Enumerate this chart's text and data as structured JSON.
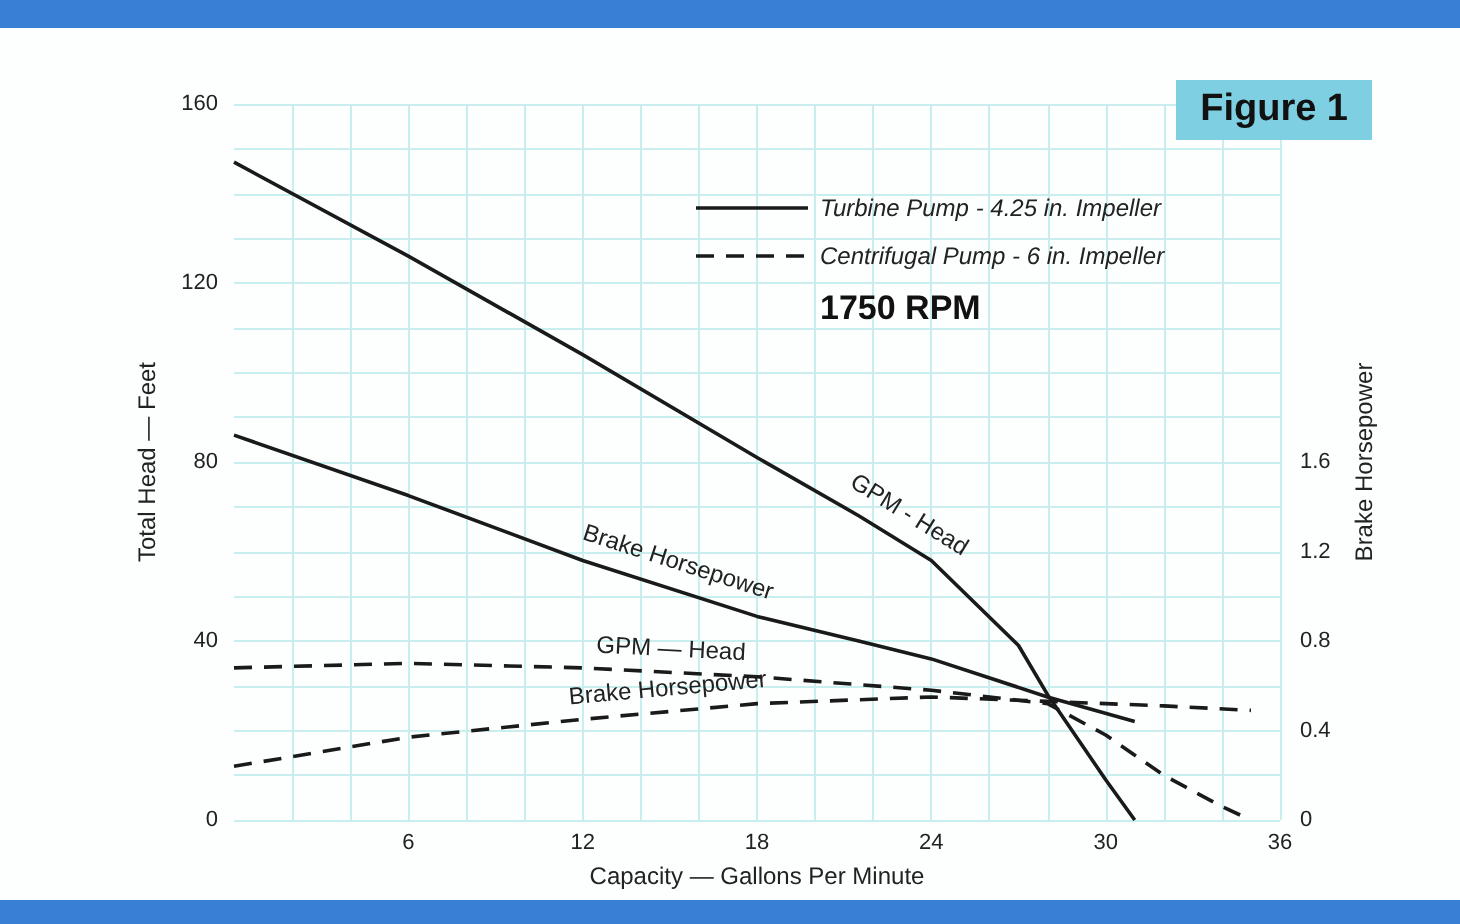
{
  "chart_data": {
    "type": "line",
    "title": "Figure 1",
    "xlabel": "Capacity — Gallons Per Minute",
    "ylabel": "Total Head — Feet",
    "y2label": "Brake Horsepower",
    "annotations": [
      "Turbine Pump - 4.25 in. Impeller",
      "Centrifugal Pump - 6 in. Impeller",
      "1750 RPM"
    ],
    "xlim": [
      0,
      36
    ],
    "xticks": [
      6,
      12,
      18,
      24,
      30,
      36
    ],
    "ylim": [
      0,
      160
    ],
    "yticks": [
      0,
      40,
      80,
      120,
      160
    ],
    "y2lim": [
      0,
      3.2
    ],
    "y2ticks": [
      0,
      0.4,
      0.8,
      1.2,
      1.6
    ],
    "grid": true,
    "legend": false,
    "marker": "none",
    "series": [
      {
        "name": "GPM - Head",
        "color": "#1a1a1a",
        "line_style": "solid",
        "x": [
          0,
          6,
          12,
          18,
          21.5,
          24,
          27,
          28,
          30,
          31
        ],
        "values": [
          147,
          126,
          104,
          81,
          68,
          58,
          39,
          28,
          9,
          0
        ]
      },
      {
        "name": "Brake Horsepower",
        "color": "#1a1a1a",
        "line_style": "solid",
        "axis": "y2",
        "x": [
          0,
          6,
          12,
          18,
          21.5,
          24,
          28,
          31
        ],
        "values": [
          1.72,
          1.45,
          1.16,
          0.91,
          0.8,
          0.72,
          0.55,
          0.44
        ]
      },
      {
        "name": "GPM — Head",
        "color": "#1a1a1a",
        "line_style": "dashed",
        "x": [
          0,
          6,
          12,
          18,
          24,
          28,
          30,
          32,
          34,
          35
        ],
        "values": [
          34,
          35,
          34,
          32,
          29,
          26,
          19,
          10,
          3,
          0
        ]
      },
      {
        "name": "Brake Horsepower",
        "color": "#1a1a1a",
        "line_style": "dashed",
        "axis": "y2",
        "x": [
          0,
          6,
          12,
          18,
          24,
          28,
          32,
          35
        ],
        "values": [
          0.24,
          0.37,
          0.45,
          0.52,
          0.55,
          0.53,
          0.51,
          0.49
        ]
      }
    ]
  }
}
